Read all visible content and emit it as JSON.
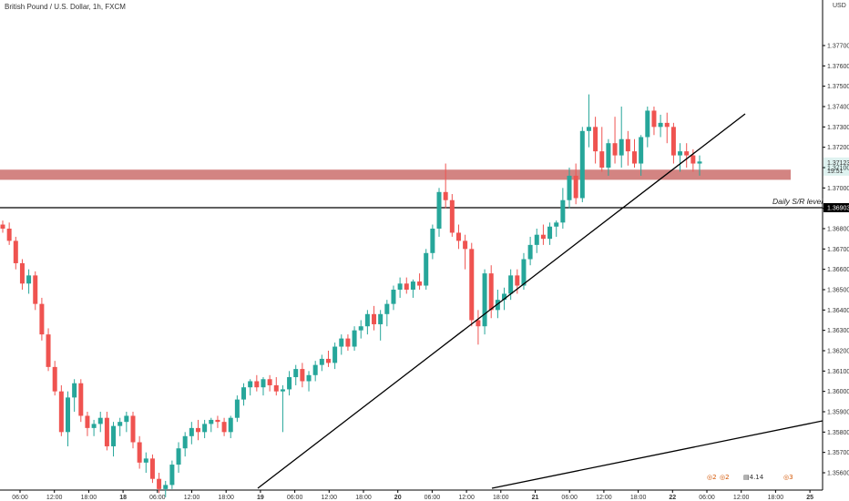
{
  "chart_data": {
    "type": "candlestick",
    "title": "British Pound / U.S. Dollar, 1h, FXCM",
    "currency": "USD",
    "y_range": [
      1.3555,
      1.3784
    ],
    "y_ticks": [
      "1.37700",
      "1.37600",
      "1.37500",
      "1.37400",
      "1.37300",
      "1.37200",
      "1.37100",
      "1.37000",
      "1.36900",
      "1.36800",
      "1.36700",
      "1.36600",
      "1.36500",
      "1.36400",
      "1.36300",
      "1.36200",
      "1.36100",
      "1.36000",
      "1.35900",
      "1.35800",
      "1.35700",
      "1.35600"
    ],
    "x_ticks": [
      "06:00",
      "12:00",
      "18:00",
      "18",
      "06:00",
      "12:00",
      "18:00",
      "19",
      "06:00",
      "12:00",
      "18:00",
      "20",
      "06:00",
      "12:00",
      "18:00",
      "21",
      "06:00",
      "12:00",
      "18:00",
      "22",
      "06:00",
      "12:00",
      "18:00",
      "25"
    ],
    "current_price": "1.37123",
    "countdown": "19:51",
    "sr_level_price": "1.36903",
    "sr_level_label": "Daily S/R level",
    "resistance_zone": [
      1.37045,
      1.37085
    ],
    "trendline_1": [
      [
        1.3555,
        1.372
      ]
    ],
    "colors": {
      "up": "#26a69a",
      "down": "#ef5350",
      "zone": "#c0504d",
      "line": "#000000"
    },
    "candles": [
      [
        1.3682,
        1.3684,
        1.3678,
        1.368
      ],
      [
        1.368,
        1.3683,
        1.3672,
        1.3674
      ],
      [
        1.3674,
        1.3676,
        1.366,
        1.3663
      ],
      [
        1.3663,
        1.3665,
        1.365,
        1.3653
      ],
      [
        1.3653,
        1.366,
        1.3648,
        1.3657
      ],
      [
        1.3657,
        1.3659,
        1.364,
        1.3643
      ],
      [
        1.3643,
        1.3646,
        1.3625,
        1.3628
      ],
      [
        1.3628,
        1.3631,
        1.361,
        1.3612
      ],
      [
        1.3612,
        1.3615,
        1.3598,
        1.36
      ],
      [
        1.36,
        1.3603,
        1.3578,
        1.358
      ],
      [
        1.358,
        1.36,
        1.3573,
        1.3597
      ],
      [
        1.3597,
        1.3606,
        1.359,
        1.3604
      ],
      [
        1.3604,
        1.3606,
        1.3585,
        1.3588
      ],
      [
        1.3588,
        1.359,
        1.3578,
        1.3582
      ],
      [
        1.3582,
        1.3586,
        1.3578,
        1.3584
      ],
      [
        1.3584,
        1.359,
        1.358,
        1.3587
      ],
      [
        1.3587,
        1.359,
        1.3571,
        1.3573
      ],
      [
        1.3573,
        1.3585,
        1.3568,
        1.3583
      ],
      [
        1.3583,
        1.3587,
        1.3578,
        1.3585
      ],
      [
        1.3585,
        1.359,
        1.358,
        1.3588
      ],
      [
        1.3588,
        1.359,
        1.3572,
        1.3575
      ],
      [
        1.3575,
        1.3578,
        1.3562,
        1.3565
      ],
      [
        1.3565,
        1.357,
        1.356,
        1.3567
      ],
      [
        1.3567,
        1.3569,
        1.3555,
        1.3557
      ],
      [
        1.3557,
        1.356,
        1.355,
        1.3552
      ],
      [
        1.3552,
        1.3556,
        1.3548,
        1.3554
      ],
      [
        1.3554,
        1.3566,
        1.3552,
        1.3564
      ],
      [
        1.3564,
        1.3575,
        1.356,
        1.3572
      ],
      [
        1.3572,
        1.358,
        1.3568,
        1.3578
      ],
      [
        1.3578,
        1.3585,
        1.3574,
        1.3582
      ],
      [
        1.3582,
        1.3586,
        1.3576,
        1.358
      ],
      [
        1.358,
        1.3586,
        1.3577,
        1.3584
      ],
      [
        1.3584,
        1.3587,
        1.358,
        1.3586
      ],
      [
        1.3586,
        1.3588,
        1.3582,
        1.3585
      ],
      [
        1.3585,
        1.3587,
        1.3578,
        1.358
      ],
      [
        1.358,
        1.3588,
        1.3577,
        1.3587
      ],
      [
        1.3587,
        1.3598,
        1.3585,
        1.3596
      ],
      [
        1.3596,
        1.3604,
        1.3593,
        1.3602
      ],
      [
        1.3602,
        1.3606,
        1.3598,
        1.3605
      ],
      [
        1.3605,
        1.3608,
        1.36,
        1.3602
      ],
      [
        1.3602,
        1.3607,
        1.3598,
        1.3606
      ],
      [
        1.3606,
        1.3608,
        1.36,
        1.3603
      ],
      [
        1.3603,
        1.3607,
        1.3598,
        1.36
      ],
      [
        1.36,
        1.3603,
        1.358,
        1.3601
      ],
      [
        1.3601,
        1.361,
        1.3598,
        1.3607
      ],
      [
        1.3607,
        1.3613,
        1.3603,
        1.3611
      ],
      [
        1.3611,
        1.3614,
        1.3602,
        1.3605
      ],
      [
        1.3605,
        1.361,
        1.36,
        1.3608
      ],
      [
        1.3608,
        1.3615,
        1.3605,
        1.3613
      ],
      [
        1.3613,
        1.3618,
        1.361,
        1.3616
      ],
      [
        1.3616,
        1.362,
        1.3612,
        1.3614
      ],
      [
        1.3614,
        1.3624,
        1.3611,
        1.3622
      ],
      [
        1.3622,
        1.3628,
        1.3618,
        1.3626
      ],
      [
        1.3626,
        1.3628,
        1.362,
        1.3622
      ],
      [
        1.3622,
        1.3632,
        1.362,
        1.363
      ],
      [
        1.363,
        1.3635,
        1.3626,
        1.3632
      ],
      [
        1.3632,
        1.364,
        1.3628,
        1.3638
      ],
      [
        1.3638,
        1.3642,
        1.363,
        1.3633
      ],
      [
        1.3633,
        1.364,
        1.3625,
        1.3638
      ],
      [
        1.3638,
        1.3645,
        1.3632,
        1.3643
      ],
      [
        1.3643,
        1.3652,
        1.364,
        1.365
      ],
      [
        1.365,
        1.3656,
        1.3646,
        1.3653
      ],
      [
        1.3653,
        1.3656,
        1.3648,
        1.365
      ],
      [
        1.365,
        1.3655,
        1.3646,
        1.3654
      ],
      [
        1.3654,
        1.3658,
        1.365,
        1.3652
      ],
      [
        1.3652,
        1.367,
        1.365,
        1.3668
      ],
      [
        1.3668,
        1.3682,
        1.3665,
        1.368
      ],
      [
        1.368,
        1.37,
        1.3676,
        1.3698
      ],
      [
        1.3698,
        1.3712,
        1.369,
        1.3694
      ],
      [
        1.3694,
        1.3697,
        1.3676,
        1.3678
      ],
      [
        1.3678,
        1.3682,
        1.367,
        1.3674
      ],
      [
        1.3674,
        1.3677,
        1.366,
        1.367
      ],
      [
        1.367,
        1.3673,
        1.3632,
        1.3635
      ],
      [
        1.3635,
        1.364,
        1.3623,
        1.3632
      ],
      [
        1.3632,
        1.366,
        1.3628,
        1.3658
      ],
      [
        1.3658,
        1.3662,
        1.3636,
        1.364
      ],
      [
        1.364,
        1.365,
        1.3636,
        1.3645
      ],
      [
        1.3645,
        1.3651,
        1.364,
        1.3648
      ],
      [
        1.3648,
        1.366,
        1.3645,
        1.3657
      ],
      [
        1.3657,
        1.366,
        1.3648,
        1.3652
      ],
      [
        1.3652,
        1.3668,
        1.365,
        1.3665
      ],
      [
        1.3665,
        1.3676,
        1.3662,
        1.3672
      ],
      [
        1.3672,
        1.368,
        1.3668,
        1.3677
      ],
      [
        1.3677,
        1.3682,
        1.3672,
        1.3675
      ],
      [
        1.3675,
        1.3683,
        1.3672,
        1.3681
      ],
      [
        1.3681,
        1.3684,
        1.3676,
        1.3683
      ],
      [
        1.3683,
        1.37,
        1.368,
        1.3694
      ],
      [
        1.3694,
        1.371,
        1.369,
        1.3706
      ],
      [
        1.3706,
        1.3712,
        1.3692,
        1.3695
      ],
      [
        1.3695,
        1.373,
        1.3693,
        1.3728
      ],
      [
        1.3728,
        1.3746,
        1.372,
        1.373
      ],
      [
        1.373,
        1.3735,
        1.3712,
        1.3718
      ],
      [
        1.3718,
        1.373,
        1.3708,
        1.371
      ],
      [
        1.371,
        1.3724,
        1.3706,
        1.3722
      ],
      [
        1.3722,
        1.3735,
        1.3712,
        1.3716
      ],
      [
        1.3716,
        1.374,
        1.371,
        1.3724
      ],
      [
        1.3724,
        1.3728,
        1.3711,
        1.3718
      ],
      [
        1.3718,
        1.3724,
        1.371,
        1.3712
      ],
      [
        1.3712,
        1.3726,
        1.3706,
        1.3725
      ],
      [
        1.3725,
        1.374,
        1.372,
        1.3738
      ],
      [
        1.3738,
        1.374,
        1.3726,
        1.373
      ],
      [
        1.373,
        1.3736,
        1.3725,
        1.3732
      ],
      [
        1.3732,
        1.3737,
        1.3722,
        1.373
      ],
      [
        1.373,
        1.3732,
        1.3712,
        1.3716
      ],
      [
        1.3716,
        1.3722,
        1.3708,
        1.3718
      ],
      [
        1.3718,
        1.3722,
        1.371,
        1.3716
      ],
      [
        1.3716,
        1.3719,
        1.3708,
        1.3712
      ],
      [
        1.3712,
        1.3716,
        1.3706,
        1.3713
      ]
    ]
  },
  "toolbar": {
    "badge_1": "2",
    "badge_2": "2",
    "badge_3": "4",
    "badge_4": "3",
    "badge_text": "4.14"
  }
}
